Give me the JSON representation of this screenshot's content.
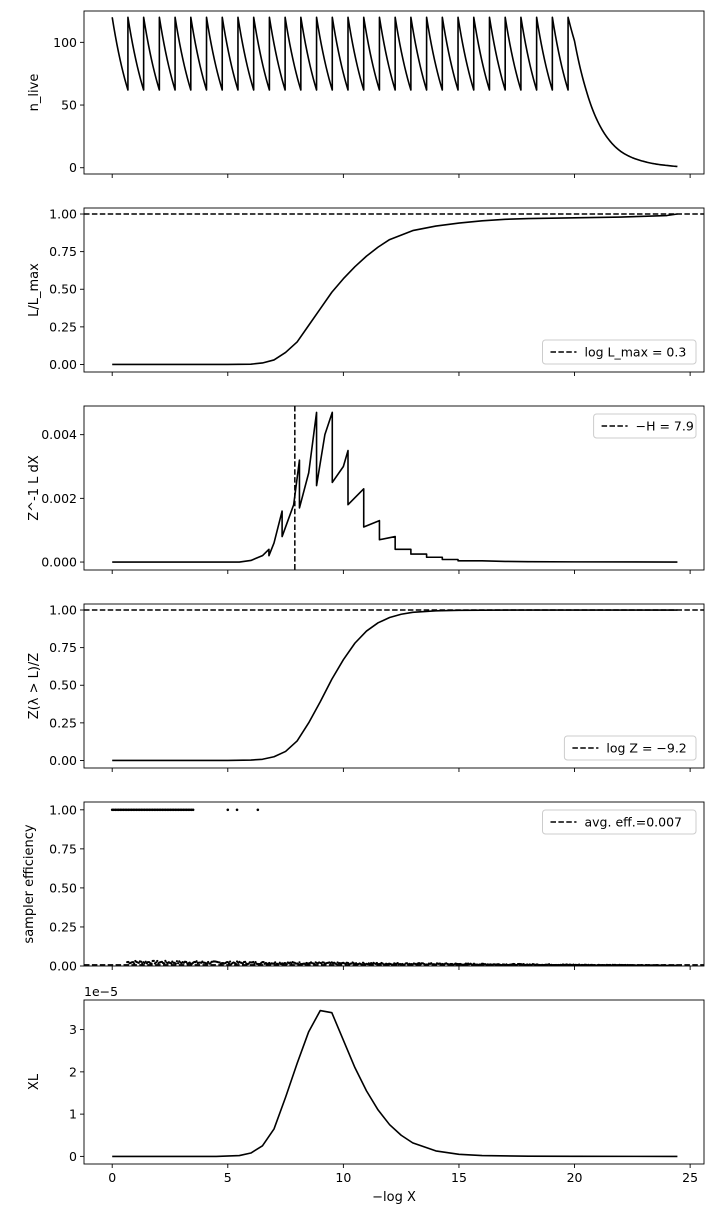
{
  "chart_data": [
    {
      "type": "line",
      "ylabel": "n_live",
      "ylim": [
        -5,
        125
      ],
      "yticks": [
        0,
        50,
        100
      ],
      "ytick_labels": [
        "0",
        "50",
        "100"
      ],
      "series": [
        {
          "kind": "sawtooth",
          "values": [
            [
              0.0,
              120
            ],
            [
              0.68,
              62
            ],
            [
              0.68,
              120
            ],
            [
              1.36,
              62
            ],
            [
              1.36,
              120
            ],
            [
              2.04,
              62
            ],
            [
              2.04,
              120
            ],
            [
              2.72,
              62
            ],
            [
              2.72,
              120
            ],
            [
              3.4,
              62
            ],
            [
              3.4,
              120
            ],
            [
              4.08,
              62
            ],
            [
              4.08,
              120
            ],
            [
              4.76,
              62
            ],
            [
              4.76,
              120
            ],
            [
              5.44,
              62
            ],
            [
              5.44,
              120
            ],
            [
              6.12,
              62
            ],
            [
              6.12,
              120
            ],
            [
              6.8,
              62
            ],
            [
              6.8,
              120
            ],
            [
              7.48,
              62
            ],
            [
              7.48,
              120
            ],
            [
              8.16,
              62
            ],
            [
              8.16,
              120
            ],
            [
              8.84,
              62
            ],
            [
              8.84,
              120
            ],
            [
              9.52,
              62
            ],
            [
              9.52,
              120
            ],
            [
              10.2,
              62
            ],
            [
              10.2,
              120
            ],
            [
              10.88,
              62
            ],
            [
              10.88,
              120
            ],
            [
              11.56,
              62
            ],
            [
              11.56,
              120
            ],
            [
              12.24,
              62
            ],
            [
              12.24,
              120
            ],
            [
              12.92,
              62
            ],
            [
              12.92,
              120
            ],
            [
              13.6,
              62
            ],
            [
              13.6,
              120
            ],
            [
              14.28,
              62
            ],
            [
              14.28,
              120
            ],
            [
              14.96,
              62
            ],
            [
              14.96,
              120
            ],
            [
              15.64,
              62
            ],
            [
              15.64,
              120
            ],
            [
              16.32,
              62
            ],
            [
              16.32,
              120
            ],
            [
              17.0,
              62
            ],
            [
              17.0,
              120
            ],
            [
              17.68,
              62
            ],
            [
              17.68,
              120
            ],
            [
              18.36,
              62
            ],
            [
              18.36,
              120
            ],
            [
              19.04,
              62
            ],
            [
              19.04,
              120
            ],
            [
              19.72,
              62
            ],
            [
              19.72,
              120
            ],
            [
              20.0,
              101
            ],
            [
              20.5,
              62
            ],
            [
              21.0,
              37
            ],
            [
              21.5,
              22
            ],
            [
              22.0,
              13
            ],
            [
              22.5,
              8
            ],
            [
              23.0,
              5
            ],
            [
              23.5,
              3
            ],
            [
              24.0,
              1.8
            ],
            [
              24.45,
              1
            ]
          ]
        }
      ]
    },
    {
      "type": "line",
      "ylabel": "L/L_max",
      "ylim": [
        -0.05,
        1.04
      ],
      "yticks": [
        0,
        0.25,
        0.5,
        0.75,
        1.0
      ],
      "ytick_labels": [
        "0.00",
        "0.25",
        "0.50",
        "0.75",
        "1.00"
      ],
      "hline": 1.0,
      "legend": {
        "label": "log L_max = 0.3",
        "position": "lower-right"
      },
      "series": [
        {
          "values": [
            [
              0,
              0
            ],
            [
              5,
              0
            ],
            [
              6,
              0.002
            ],
            [
              6.5,
              0.01
            ],
            [
              7,
              0.03
            ],
            [
              7.5,
              0.08
            ],
            [
              8,
              0.15
            ],
            [
              8.5,
              0.26
            ],
            [
              9,
              0.37
            ],
            [
              9.5,
              0.48
            ],
            [
              10,
              0.57
            ],
            [
              10.5,
              0.65
            ],
            [
              11,
              0.72
            ],
            [
              11.5,
              0.78
            ],
            [
              12,
              0.83
            ],
            [
              12.5,
              0.86
            ],
            [
              13,
              0.89
            ],
            [
              14,
              0.92
            ],
            [
              15,
              0.94
            ],
            [
              16,
              0.955
            ],
            [
              17,
              0.965
            ],
            [
              18,
              0.97
            ],
            [
              20,
              0.975
            ],
            [
              22,
              0.98
            ],
            [
              23,
              0.985
            ],
            [
              24,
              0.99
            ],
            [
              24.45,
              1.0
            ]
          ]
        }
      ]
    },
    {
      "type": "line",
      "ylabel": "Z^-1 L dX",
      "ylim": [
        -0.00025,
        0.0049
      ],
      "yticks": [
        0,
        0.002,
        0.004
      ],
      "ytick_labels": [
        "0.000",
        "0.002",
        "0.004"
      ],
      "vline": 7.9,
      "legend": {
        "label": "−H = 7.9",
        "position": "upper-right"
      },
      "series": [
        {
          "values": [
            [
              0,
              0
            ],
            [
              5.5,
              0
            ],
            [
              6.0,
              5e-05
            ],
            [
              6.5,
              0.0002
            ],
            [
              6.78,
              0.0004
            ],
            [
              6.78,
              0.0002
            ],
            [
              7.0,
              0.0006
            ],
            [
              7.35,
              0.0016
            ],
            [
              7.35,
              0.0008
            ],
            [
              7.85,
              0.0018
            ],
            [
              8.1,
              0.0032
            ],
            [
              8.1,
              0.0017
            ],
            [
              8.5,
              0.0028
            ],
            [
              8.84,
              0.0047
            ],
            [
              8.84,
              0.0024
            ],
            [
              9.2,
              0.004
            ],
            [
              9.52,
              0.0047
            ],
            [
              9.52,
              0.0025
            ],
            [
              10.0,
              0.003
            ],
            [
              10.2,
              0.0035
            ],
            [
              10.2,
              0.0018
            ],
            [
              10.88,
              0.0023
            ],
            [
              10.88,
              0.0011
            ],
            [
              11.56,
              0.0013
            ],
            [
              11.56,
              0.0007
            ],
            [
              12.24,
              0.0008
            ],
            [
              12.24,
              0.0004
            ],
            [
              12.92,
              0.0004
            ],
            [
              12.92,
              0.00025
            ],
            [
              13.6,
              0.00025
            ],
            [
              13.6,
              0.00015
            ],
            [
              14.28,
              0.00015
            ],
            [
              14.28,
              8e-05
            ],
            [
              14.96,
              8e-05
            ],
            [
              14.96,
              4e-05
            ],
            [
              16,
              4e-05
            ],
            [
              17,
              2e-05
            ],
            [
              18,
              1e-05
            ],
            [
              20,
              5e-06
            ],
            [
              24.45,
              0
            ]
          ]
        }
      ]
    },
    {
      "type": "line",
      "ylabel": "Z(λ > L)/Z",
      "ylim": [
        -0.05,
        1.04
      ],
      "yticks": [
        0,
        0.25,
        0.5,
        0.75,
        1.0
      ],
      "ytick_labels": [
        "0.00",
        "0.25",
        "0.50",
        "0.75",
        "1.00"
      ],
      "hline": 1.0,
      "legend": {
        "label": "log Z = −9.2",
        "position": "lower-right"
      },
      "series": [
        {
          "values": [
            [
              0,
              0
            ],
            [
              5,
              0
            ],
            [
              6,
              0.003
            ],
            [
              6.5,
              0.008
            ],
            [
              7,
              0.025
            ],
            [
              7.5,
              0.06
            ],
            [
              8,
              0.13
            ],
            [
              8.5,
              0.25
            ],
            [
              9,
              0.39
            ],
            [
              9.5,
              0.54
            ],
            [
              10,
              0.67
            ],
            [
              10.5,
              0.78
            ],
            [
              11,
              0.86
            ],
            [
              11.5,
              0.915
            ],
            [
              12,
              0.95
            ],
            [
              12.5,
              0.972
            ],
            [
              13,
              0.985
            ],
            [
              14,
              0.995
            ],
            [
              15,
              0.998
            ],
            [
              16,
              0.999
            ],
            [
              18,
              1.0
            ],
            [
              24.45,
              1.0
            ]
          ]
        }
      ]
    },
    {
      "type": "scatter",
      "ylabel": "sampler efficiency",
      "ylim": [
        0,
        1.05
      ],
      "yticks": [
        0,
        0.25,
        0.5,
        0.75,
        1.0
      ],
      "ytick_labels": [
        "0.00",
        "0.25",
        "0.50",
        "0.75",
        "1.00"
      ],
      "hline": 0.007,
      "legend": {
        "label": "avg. eff.=0.007",
        "position": "upper-right"
      },
      "series": [
        {
          "name": "efficiency = 1",
          "x_range": [
            0,
            3.5
          ],
          "y": 1.0,
          "extra_points": [
            [
              5.0,
              1.0
            ],
            [
              5.4,
              1.0
            ],
            [
              6.3,
              1.0
            ]
          ]
        },
        {
          "name": "low efficiency",
          "x_range": [
            0.65,
            24.45
          ],
          "y_start": 0.025,
          "y_end": 0.003
        }
      ]
    },
    {
      "type": "line",
      "ylabel": "XL",
      "xlabel": "−log X",
      "ylim": [
        -1.8e-06,
        3.7e-05
      ],
      "yticks": [
        0,
        1e-05,
        2e-05,
        3e-05
      ],
      "ytick_labels": [
        "0",
        "1",
        "2",
        "3"
      ],
      "offset_text": "1e−5",
      "xlim": [
        -1.22,
        25.6
      ],
      "xticks": [
        0,
        5,
        10,
        15,
        20,
        25
      ],
      "xtick_labels": [
        "0",
        "5",
        "10",
        "15",
        "20",
        "25"
      ],
      "series": [
        {
          "values": [
            [
              0,
              0
            ],
            [
              4.5,
              0
            ],
            [
              5.5,
              2e-07
            ],
            [
              6,
              8e-07
            ],
            [
              6.5,
              2.5e-06
            ],
            [
              7,
              6.5e-06
            ],
            [
              7.5,
              1.4e-05
            ],
            [
              8,
              2.2e-05
            ],
            [
              8.5,
              2.95e-05
            ],
            [
              9,
              3.45e-05
            ],
            [
              9.5,
              3.4e-05
            ],
            [
              10,
              2.75e-05
            ],
            [
              10.5,
              2.1e-05
            ],
            [
              11,
              1.55e-05
            ],
            [
              11.5,
              1.1e-05
            ],
            [
              12,
              7.5e-06
            ],
            [
              12.5,
              5e-06
            ],
            [
              13,
              3.2e-06
            ],
            [
              14,
              1.3e-06
            ],
            [
              15,
              5e-07
            ],
            [
              16,
              2e-07
            ],
            [
              18,
              5e-08
            ],
            [
              20,
              1e-08
            ],
            [
              24.45,
              0
            ]
          ]
        }
      ]
    }
  ]
}
